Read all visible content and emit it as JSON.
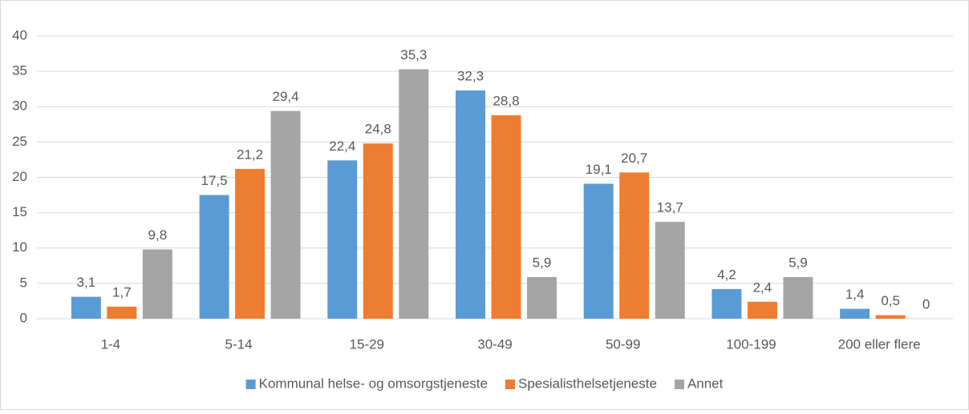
{
  "chart_data": {
    "type": "bar",
    "categories": [
      "1-4",
      "5-14",
      "15-29",
      "30-49",
      "50-99",
      "100-199",
      "200 eller flere"
    ],
    "series": [
      {
        "name": "Kommunal helse- og omsorgstjeneste",
        "color": "#5b9bd5",
        "values": [
          3.1,
          17.5,
          22.4,
          32.3,
          19.1,
          4.2,
          1.4
        ],
        "value_labels": [
          "3,1",
          "17,5",
          "22,4",
          "32,3",
          "19,1",
          "4,2",
          "1,4"
        ]
      },
      {
        "name": "Spesialisthelsetjeneste",
        "color": "#ed7d31",
        "values": [
          1.7,
          21.2,
          24.8,
          28.8,
          20.7,
          2.4,
          0.5
        ],
        "value_labels": [
          "1,7",
          "21,2",
          "24,8",
          "28,8",
          "20,7",
          "2,4",
          "0,5"
        ]
      },
      {
        "name": "Annet",
        "color": "#a5a5a5",
        "values": [
          9.8,
          29.4,
          35.3,
          5.9,
          13.7,
          5.9,
          0
        ],
        "value_labels": [
          "9,8",
          "29,4",
          "35,3",
          "5,9",
          "13,7",
          "5,9",
          "0"
        ]
      }
    ],
    "ylim": [
      0,
      40
    ],
    "yticks": [
      0,
      5,
      10,
      15,
      20,
      25,
      30,
      35,
      40
    ],
    "grid": true,
    "legend": "bottom"
  }
}
